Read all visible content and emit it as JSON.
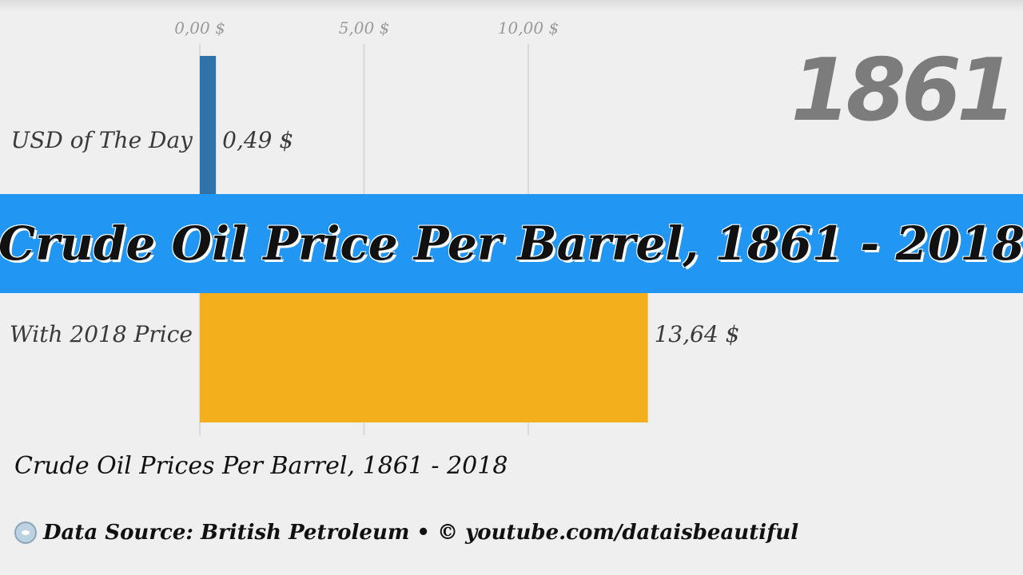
{
  "chart_data": {
    "type": "bar",
    "orientation": "horizontal",
    "title": "Crude Oil Price Per Barrel, 1861 - 2018",
    "year": "1861",
    "categories": [
      "USD of The Day",
      "With 2018 Price"
    ],
    "values": [
      0.49,
      13.64
    ],
    "value_labels": [
      "0,49 $",
      "13,64 $"
    ],
    "colors": [
      "#2e74aa",
      "#f3b01c"
    ],
    "x_ticks": [
      0,
      5,
      10
    ],
    "x_tick_labels": [
      "0,00 $",
      "5,00 $",
      "10,00 $"
    ],
    "grid": true,
    "xlabel": "",
    "ylabel": ""
  },
  "caption": "Crude Oil Prices Per Barrel, 1861 - 2018",
  "source": {
    "text": "Data Source: British Petroleum • © youtube.com/dataisbeautiful",
    "icon": "reddit-alien-icon"
  }
}
